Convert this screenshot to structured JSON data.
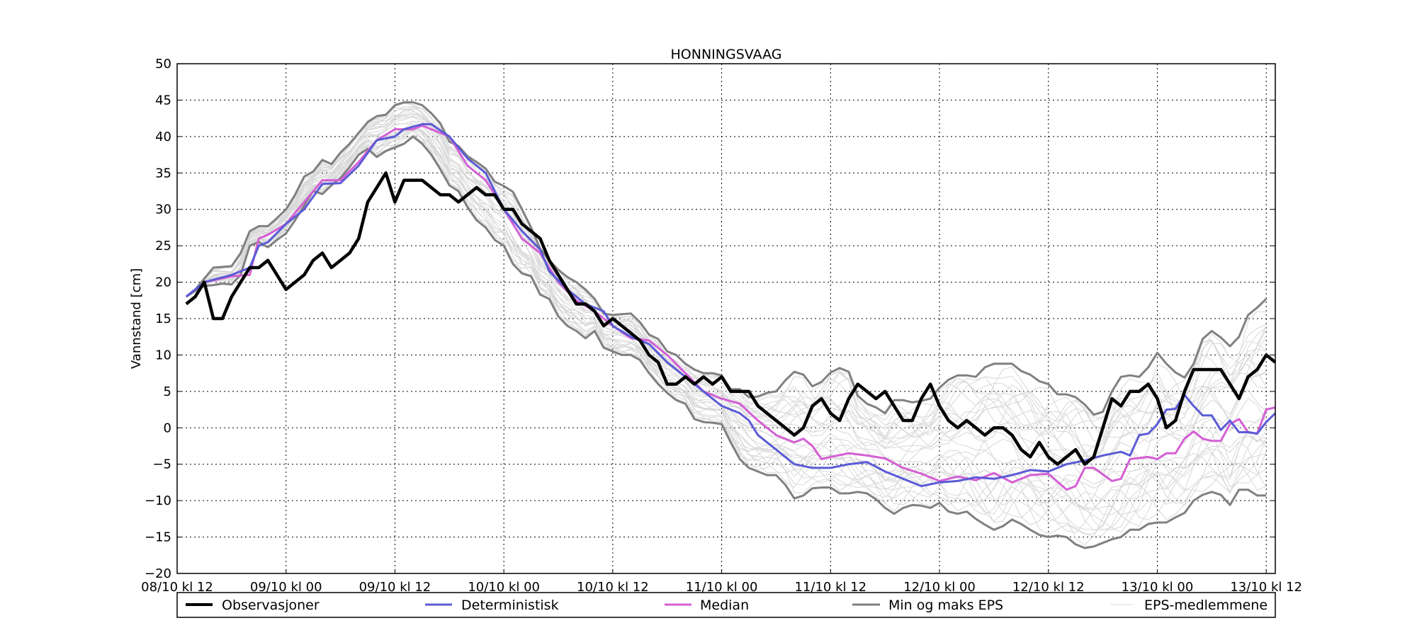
{
  "chart_data": {
    "type": "line",
    "title": "HONNINGSVAAG",
    "xlabel": "",
    "ylabel": "Vannstand [cm]",
    "xlim_hours": [
      0,
      121
    ],
    "ylim": [
      -20,
      50
    ],
    "grid": true,
    "yticks": [
      50,
      45,
      40,
      35,
      30,
      25,
      20,
      15,
      10,
      5,
      0,
      -5,
      -10,
      -15,
      -20
    ],
    "ytick_labels": [
      "50",
      "45",
      "40",
      "35",
      "30",
      "25",
      "20",
      "15",
      "10",
      "5",
      "0",
      "−5",
      "−10",
      "−15",
      "−20"
    ],
    "xticks_hours": [
      0,
      12,
      24,
      36,
      48,
      60,
      72,
      84,
      96,
      108,
      120
    ],
    "xtick_labels": [
      "08/10 kl 12",
      "09/10 kl 00",
      "09/10 kl 12",
      "10/10 kl 00",
      "10/10 kl 12",
      "11/10 kl 00",
      "11/10 kl 12",
      "12/10 kl 00",
      "12/10 kl 12",
      "13/10 kl 00",
      "13/10 kl 12"
    ],
    "legend_placement": "below",
    "legend": [
      "Observasjoner",
      "Deterministisk",
      "Median",
      "Min og maks EPS",
      "EPS-medlemmene"
    ],
    "colors": {
      "obs": "#000000",
      "det": "#5b5bd6",
      "median": "#d45fd4",
      "minmax": "#808080",
      "members": "#d8d8d8"
    },
    "series": [
      {
        "name": "Observasjoner",
        "start_hour": 1,
        "step_hours": 1,
        "values": [
          17,
          18,
          20,
          15,
          15,
          18,
          20,
          22,
          22,
          23,
          21,
          19,
          20,
          21,
          23,
          24,
          22,
          23,
          24,
          26,
          31,
          33,
          35,
          31,
          34,
          34,
          34,
          33,
          32,
          32,
          31,
          32,
          33,
          32,
          32,
          30,
          30,
          28,
          27,
          26,
          23,
          21,
          19,
          17,
          17,
          16,
          14,
          15,
          14,
          13,
          12,
          10,
          9,
          6,
          6,
          7,
          6,
          7,
          6,
          7,
          5,
          5,
          5,
          3,
          2,
          1,
          0,
          -1,
          0,
          3,
          4,
          2,
          1,
          4,
          6,
          5,
          4,
          5,
          3,
          1,
          1,
          4,
          6,
          3,
          1,
          0,
          1,
          0,
          -1,
          0,
          0,
          -1,
          -3,
          -4,
          -2,
          -4,
          -5,
          -4,
          -3,
          -5,
          -4,
          0,
          4,
          3,
          5,
          5,
          6,
          4,
          0,
          1,
          5,
          8,
          8,
          8,
          8,
          6,
          4,
          7,
          8,
          10,
          9
        ]
      },
      {
        "name": "Deterministisk",
        "hours": [
          1,
          3,
          6,
          8,
          9,
          10,
          12,
          14,
          16,
          18,
          20,
          22,
          24,
          25,
          27,
          28,
          30,
          32,
          34,
          36,
          38,
          40,
          41,
          43,
          45,
          47,
          48,
          50,
          52,
          54,
          56,
          58,
          60,
          62,
          63,
          64,
          66,
          68,
          70,
          72,
          74,
          76,
          78,
          80,
          82,
          84,
          86,
          88,
          90,
          92,
          94,
          96,
          98,
          100,
          102,
          104,
          105,
          106,
          107,
          108,
          109,
          110,
          111,
          112,
          113,
          114,
          115,
          116,
          117,
          118,
          119,
          120,
          121
        ],
        "values": [
          18,
          20,
          21,
          22,
          25,
          25.5,
          28,
          30,
          33.5,
          33.6,
          36,
          39.5,
          40,
          41,
          41.7,
          41.7,
          40,
          37,
          35,
          30,
          27,
          24.5,
          21.5,
          19,
          17,
          16,
          14,
          12.5,
          11.5,
          9,
          7,
          5,
          3,
          2,
          1,
          -1,
          -3,
          -5,
          -5.5,
          -5.5,
          -5,
          -4.7,
          -6,
          -7,
          -8,
          -7.5,
          -7.3,
          -6.8,
          -7,
          -6.5,
          -5.8,
          -6,
          -5,
          -4.5,
          -3.8,
          -3.3,
          -3.8,
          -1,
          -0.8,
          0.5,
          2.5,
          2.6,
          4.5,
          3,
          1.7,
          1.7,
          -0.3,
          1,
          -0.6,
          -0.6,
          -0.8,
          0.8,
          2
        ]
      },
      {
        "name": "Median",
        "hours": [
          1,
          3,
          6,
          8,
          9,
          10,
          12,
          14,
          16,
          18,
          20,
          22,
          24,
          26,
          27,
          30,
          32,
          34,
          36,
          38,
          40,
          42,
          44,
          46,
          48,
          50,
          52,
          54,
          56,
          58,
          60,
          62,
          64,
          66,
          68,
          69,
          70,
          71,
          72,
          74,
          76,
          78,
          80,
          82,
          84,
          86,
          88,
          90,
          92,
          94,
          96,
          98,
          99,
          100,
          101,
          103,
          104,
          105,
          107,
          108,
          109,
          110,
          111,
          112,
          113,
          114,
          115,
          116,
          117,
          118,
          119,
          120,
          121
        ],
        "values": [
          18,
          20,
          20.8,
          21,
          26,
          26.5,
          28,
          31,
          34,
          34,
          36.5,
          39.5,
          41,
          41,
          41.5,
          40,
          36,
          34,
          30,
          26,
          24,
          20,
          17.5,
          16,
          14,
          12.3,
          12,
          10,
          7.5,
          5,
          4,
          3.3,
          1,
          -1,
          -2,
          -1.5,
          -2.5,
          -4.3,
          -4,
          -3.5,
          -3.8,
          -4.2,
          -5.5,
          -6.3,
          -7.3,
          -6.7,
          -7.2,
          -6.2,
          -7.5,
          -6.5,
          -6.3,
          -8.5,
          -8,
          -5.5,
          -5.5,
          -7.3,
          -7,
          -4.3,
          -4,
          -4.3,
          -3.5,
          -3.5,
          -1.5,
          -0.5,
          -1.5,
          -1.8,
          -1.8,
          0.5,
          1.2,
          -0.6,
          -0.8,
          2.5,
          2.8
        ]
      },
      {
        "name": "Maks EPS",
        "start_hour": 1,
        "step_hours": 1,
        "values": [
          18,
          19,
          20.5,
          22,
          22.1,
          22.2,
          24,
          27,
          27.7,
          27.7,
          28.8,
          30,
          32,
          34.5,
          35.2,
          36.8,
          36.2,
          37.8,
          39,
          40.5,
          42,
          42.8,
          43,
          44.3,
          44.7,
          44.7,
          44.3,
          43.2,
          41.8,
          39.3,
          38.7,
          37.3,
          36.5,
          35.6,
          33.8,
          33.2,
          32.4,
          30,
          27.5,
          24.6,
          23,
          21.7,
          20.7,
          20,
          19,
          17.7,
          15.7,
          15.5,
          15.6,
          15.7,
          14.5,
          12.8,
          12.2,
          10.5,
          10,
          8.8,
          8,
          7.5,
          7.5,
          7.2,
          5.3,
          5.3,
          4.2,
          4.3,
          4.8,
          5,
          6.5,
          7.7,
          7.3,
          5.7,
          6.3,
          7.6,
          8.2,
          7.7,
          4.4,
          3.3,
          2.8,
          2,
          3.8,
          3.8,
          3.5,
          3.7,
          4,
          5.5,
          6.6,
          7.2,
          7.2,
          7,
          8.3,
          8.8,
          8.8,
          8.8,
          7.8,
          7.3,
          6.4,
          6,
          4.6,
          4.6,
          4.2,
          3.2,
          1.8,
          2.2,
          5,
          7,
          7.2,
          7,
          8.3,
          10.3,
          8.8,
          7.6,
          6.9,
          8.8,
          12.2,
          13.3,
          12.4,
          11.2,
          12.5,
          15.5,
          16.5,
          17.7
        ]
      },
      {
        "name": "Min EPS",
        "start_hour": 1,
        "step_hours": 1,
        "values": [
          18,
          18.8,
          19.5,
          19.6,
          19.8,
          19.7,
          21,
          25,
          25.5,
          24.8,
          25.8,
          26.7,
          28.5,
          30.5,
          32.5,
          32.1,
          33.3,
          34.3,
          35.8,
          37.5,
          38.3,
          37.2,
          38,
          38.5,
          39,
          40,
          39,
          37.5,
          35.5,
          33.3,
          32.5,
          30.3,
          28.5,
          27.5,
          25.8,
          25,
          22.5,
          21.2,
          20.8,
          18.3,
          17.7,
          15.3,
          14,
          13.3,
          12.3,
          13.3,
          11,
          10.5,
          10,
          10,
          9.3,
          7.5,
          6,
          4.8,
          3.8,
          3.3,
          1.2,
          0.8,
          0.7,
          0.5,
          -2,
          -4.3,
          -5.5,
          -6,
          -6.5,
          -6.5,
          -7.8,
          -9.7,
          -9.3,
          -8.3,
          -8.2,
          -8.2,
          -9,
          -9,
          -8.8,
          -9,
          -9.8,
          -11,
          -11.8,
          -11,
          -10.6,
          -10.7,
          -11,
          -10.3,
          -11.5,
          -11.8,
          -11.5,
          -12.5,
          -13.3,
          -14,
          -13.5,
          -12.6,
          -13.2,
          -14,
          -14.7,
          -15,
          -14.8,
          -15,
          -16,
          -16.5,
          -16.3,
          -15.8,
          -15.3,
          -15,
          -14,
          -14,
          -13.2,
          -13,
          -13,
          -12.3,
          -11.7,
          -10,
          -9.2,
          -8.8,
          -9.2,
          -10.6,
          -8.5,
          -8.5,
          -9.3,
          -9.3
        ]
      }
    ]
  }
}
